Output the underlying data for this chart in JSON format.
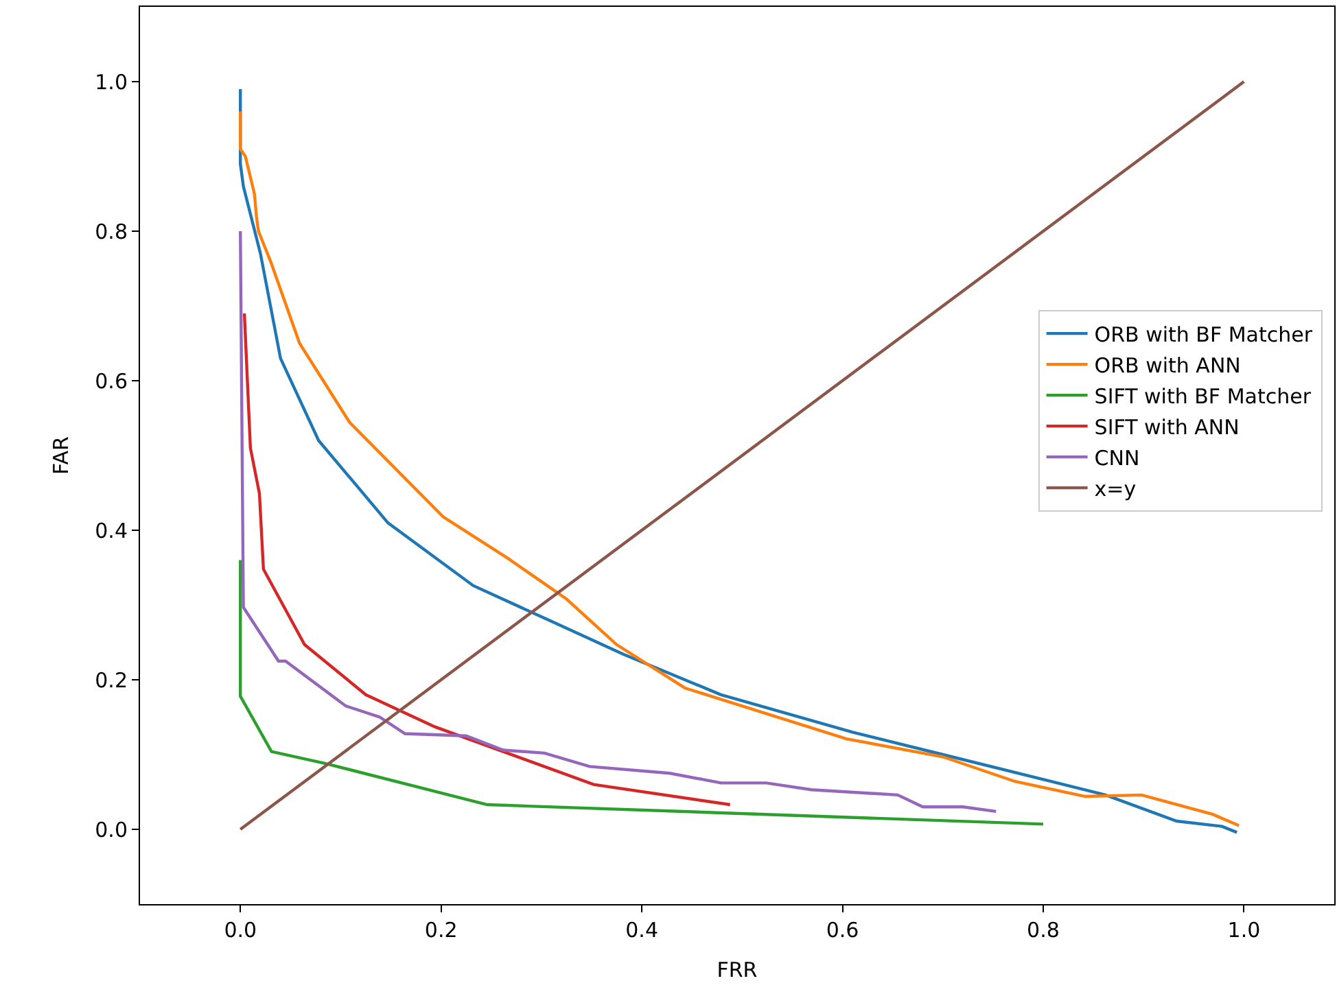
{
  "chart_data": {
    "type": "line",
    "xlabel": "FRR",
    "ylabel": "FAR",
    "xlim": [
      -0.1,
      1.09
    ],
    "ylim": [
      -0.1,
      1.1
    ],
    "xticks": [
      {
        "value": 0,
        "label": "0.0"
      },
      {
        "value": 0.2,
        "label": "0.2"
      },
      {
        "value": 0.4,
        "label": "0.4"
      },
      {
        "value": 0.6,
        "label": "0.6"
      },
      {
        "value": 0.8,
        "label": "0.8"
      },
      {
        "value": 1,
        "label": "1.0"
      }
    ],
    "yticks": [
      {
        "value": 0,
        "label": "0.0"
      },
      {
        "value": 0.2,
        "label": "0.2"
      },
      {
        "value": 0.4,
        "label": "0.4"
      },
      {
        "value": 0.6,
        "label": "0.6"
      },
      {
        "value": 0.8,
        "label": "0.8"
      },
      {
        "value": 1,
        "label": "1.0"
      }
    ],
    "legend": "right",
    "marker": "none",
    "line_style": "solid",
    "series": [
      {
        "name": "ORB with BF Matcher",
        "color": "#1f77b4",
        "x": [
          0,
          0,
          0.003,
          0.02,
          0.04,
          0.078,
          0.147,
          0.232,
          0.307,
          0.382,
          0.479,
          0.61,
          0.7,
          0.862,
          0.933,
          0.978,
          0.993
        ],
        "values": [
          0.99,
          0.89,
          0.86,
          0.77,
          0.63,
          0.52,
          0.41,
          0.326,
          0.28,
          0.234,
          0.18,
          0.13,
          0.1,
          0.046,
          0.011,
          0.004,
          -0.004
        ]
      },
      {
        "name": "ORB with ANN",
        "color": "#ff7f0e",
        "x": [
          0,
          0,
          0.005,
          0.014,
          0.016,
          0.018,
          0.03,
          0.059,
          0.109,
          0.202,
          0.266,
          0.325,
          0.375,
          0.443,
          0.604,
          0.7,
          0.772,
          0.842,
          0.898,
          0.969,
          0.995
        ],
        "values": [
          0.96,
          0.91,
          0.9,
          0.85,
          0.82,
          0.8,
          0.76,
          0.65,
          0.544,
          0.418,
          0.363,
          0.308,
          0.247,
          0.189,
          0.121,
          0.097,
          0.064,
          0.044,
          0.046,
          0.02,
          0.005
        ]
      },
      {
        "name": "SIFT with BF Matcher",
        "color": "#2ca02c",
        "x": [
          0,
          0,
          0.031,
          0.085,
          0.246,
          0.8
        ],
        "values": [
          0.36,
          0.178,
          0.104,
          0.088,
          0.033,
          0.007
        ]
      },
      {
        "name": "SIFT with ANN",
        "color": "#d62728",
        "x": [
          0.004,
          0.01,
          0.019,
          0.023,
          0.064,
          0.125,
          0.194,
          0.352,
          0.488
        ],
        "values": [
          0.69,
          0.51,
          0.449,
          0.348,
          0.247,
          0.18,
          0.137,
          0.06,
          0.033
        ]
      },
      {
        "name": "CNN",
        "color": "#9467bd",
        "x": [
          0,
          0.003,
          0.038,
          0.045,
          0.105,
          0.139,
          0.164,
          0.225,
          0.262,
          0.303,
          0.348,
          0.428,
          0.479,
          0.524,
          0.569,
          0.655,
          0.68,
          0.72,
          0.753
        ],
        "values": [
          0.8,
          0.297,
          0.225,
          0.225,
          0.165,
          0.15,
          0.128,
          0.125,
          0.106,
          0.102,
          0.084,
          0.075,
          0.062,
          0.062,
          0.053,
          0.046,
          0.03,
          0.03,
          0.024
        ]
      },
      {
        "name": "x=y",
        "color": "#8c564b",
        "x": [
          0,
          1
        ],
        "values": [
          0,
          1
        ]
      }
    ]
  }
}
